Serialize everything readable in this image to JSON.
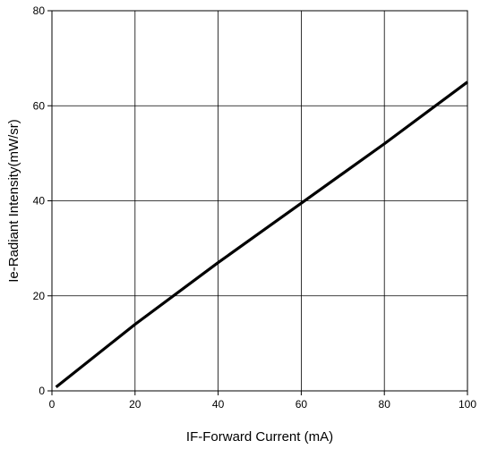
{
  "chart_data": {
    "type": "line",
    "title": "",
    "xlabel": "IF-Forward Current (mA)",
    "ylabel": "Ie-Radiant Intensity(mW/sr)",
    "xlim": [
      0,
      100
    ],
    "ylim": [
      0,
      80
    ],
    "x_ticks": [
      0,
      20,
      40,
      60,
      80,
      100
    ],
    "y_ticks": [
      0,
      20,
      40,
      60,
      80
    ],
    "grid": true,
    "series": [
      {
        "color": "#000000",
        "x": [
          1,
          20,
          40,
          60,
          80,
          100
        ],
        "y": [
          0.8,
          14,
          27,
          39.5,
          52,
          65
        ]
      }
    ]
  }
}
